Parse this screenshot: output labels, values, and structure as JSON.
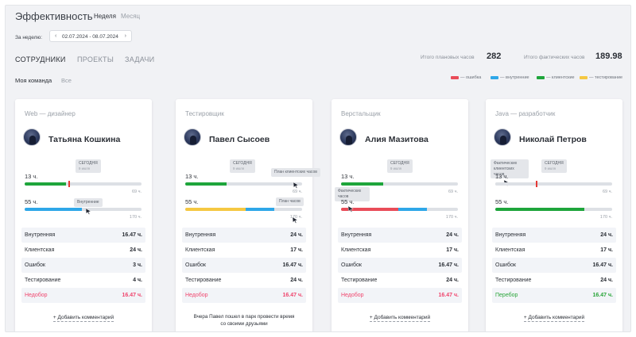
{
  "header": {
    "title": "Эффективность",
    "tabs": [
      "Неделя",
      "Месяц"
    ]
  },
  "period": {
    "label": "За неделю:",
    "range": "02.07.2024 - 08.07.2024",
    "prev_icon": "chevron-left-icon",
    "next_icon": "chevron-right-icon"
  },
  "nav": [
    "СОТРУДНИКИ",
    "ПРОЕКТЫ",
    "ЗАДАЧИ"
  ],
  "totals": {
    "plan_label": "Итого плановых часов",
    "plan_value": "282",
    "fact_label": "Итого фактических часов",
    "fact_value": "189.98"
  },
  "team_filter": [
    "Моя команда",
    "Все"
  ],
  "legend": [
    {
      "label": "— ошибка",
      "color": "#e94c58"
    },
    {
      "label": "— внутренние",
      "color": "#2ea7e8"
    },
    {
      "label": "— клиентские",
      "color": "#1ea53b"
    },
    {
      "label": "— тестирование",
      "color": "#f5c842"
    }
  ],
  "colors": {
    "error": "#e94c58",
    "internal": "#2ea7e8",
    "client": "#1ea53b",
    "testing": "#f5c842",
    "shortage": "#f0466e",
    "overage": "#2aa53a"
  },
  "cards": [
    {
      "role": "Web — дизайнер",
      "name": "Татьяна Кошкина",
      "plan_hours": "13 ч.",
      "plan_max": "69 ч.",
      "plan_fill": 0.36,
      "fact_hours": "55 ч.",
      "fact_max": "170 ч.",
      "tooltips": [
        "СЕГОДНЯ",
        "9 июля",
        "Внутренние"
      ],
      "stats": [
        {
          "label": "Внутренняя",
          "value": "16.47 ч."
        },
        {
          "label": "Клиентская",
          "value": "24 ч."
        },
        {
          "label": "Ошибок",
          "value": "3 ч."
        },
        {
          "label": "Тестирование",
          "value": "4 ч."
        }
      ],
      "balance": {
        "label": "Недобор",
        "value": "16.47 ч."
      },
      "footer": "+ Добавить комментарий"
    },
    {
      "role": "Тестировщик",
      "name": "Павел Сысоев",
      "plan_hours": "13 ч.",
      "plan_max": "69 ч.",
      "plan_fill": 0.35,
      "fact_hours": "55 ч.",
      "fact_max": "170 ч.",
      "tooltips": [
        "СЕГОДНЯ",
        "9 июля",
        "План клиентских часов",
        "План часов"
      ],
      "stats": [
        {
          "label": "Внутренняя",
          "value": "24 ч."
        },
        {
          "label": "Клиентская",
          "value": "17 ч."
        },
        {
          "label": "Ошибок",
          "value": "16.47 ч."
        },
        {
          "label": "Тестирование",
          "value": "24 ч."
        }
      ],
      "balance": {
        "label": "Недобор",
        "value": "16.47 ч."
      },
      "comment_line1": "Вчера Павел пошел в парк провести время",
      "comment_line2": "со своими друзьями"
    },
    {
      "role": "Верстальщик",
      "name": "Алия Мазитова",
      "plan_hours": "13 ч.",
      "plan_max": "69 ч.",
      "plan_fill": 0.36,
      "fact_hours": "55 ч.",
      "fact_max": "170 ч.",
      "tooltips": [
        "СЕГОДНЯ",
        "9 июля",
        "Фактических часов"
      ],
      "stats": [
        {
          "label": "Внутренняя",
          "value": "24 ч."
        },
        {
          "label": "Клиентская",
          "value": "17 ч."
        },
        {
          "label": "Ошибок",
          "value": "16.47 ч."
        },
        {
          "label": "Тестирование",
          "value": "24 ч."
        }
      ],
      "balance": {
        "label": "Недобор",
        "value": "16.47 ч."
      },
      "footer": "+ Добавить комментарий"
    },
    {
      "role": "Java — разработчик",
      "name": "Николай Петров",
      "plan_hours": "13 ч.",
      "plan_max": "69 ч.",
      "plan_fill": 0.35,
      "fact_hours": "55 ч.",
      "fact_max": "170 ч.",
      "tooltips": [
        "СЕГОДНЯ",
        "9 июля",
        "Фактических клиентских часов"
      ],
      "stats": [
        {
          "label": "Внутренняя",
          "value": "24 ч."
        },
        {
          "label": "Клиентская",
          "value": "17 ч."
        },
        {
          "label": "Ошибок",
          "value": "16.47 ч."
        },
        {
          "label": "Тестирование",
          "value": "24 ч."
        }
      ],
      "balance": {
        "label": "Перебор",
        "value": "16.47 ч."
      },
      "footer": "+ Добавить комментарий"
    }
  ]
}
